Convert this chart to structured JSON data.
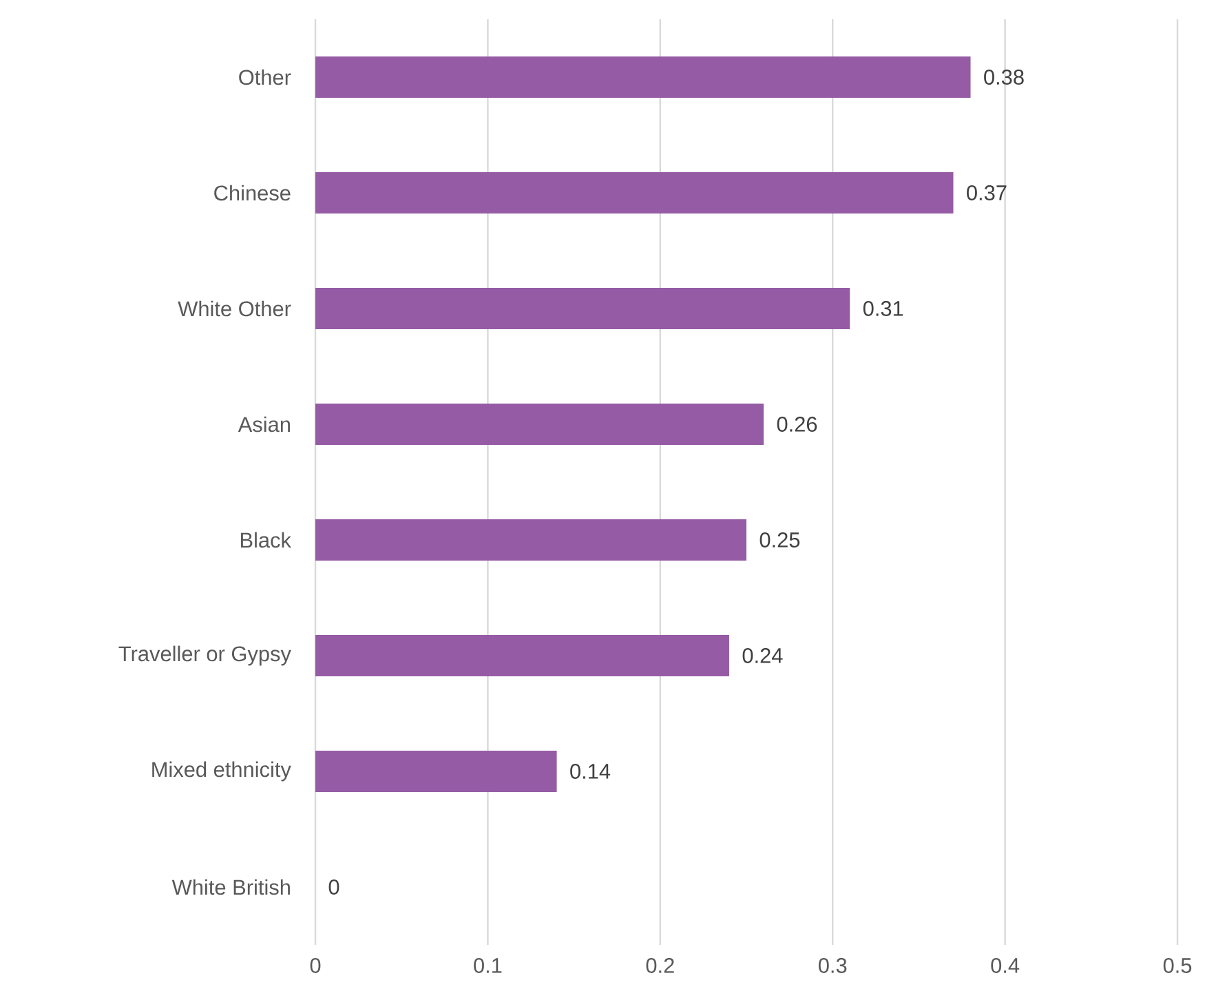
{
  "chart_data": {
    "type": "bar",
    "orientation": "horizontal",
    "categories": [
      "Other",
      "Chinese",
      "White Other",
      "Asian",
      "Black",
      "Traveller or Gypsy",
      "Mixed ethnicity",
      "White British"
    ],
    "values": [
      0.38,
      0.37,
      0.31,
      0.26,
      0.25,
      0.24,
      0.14,
      0
    ],
    "color": "#955ba5",
    "xlim": [
      0,
      0.5
    ],
    "xticks": [
      0,
      0.1,
      0.2,
      0.3,
      0.4,
      0.5
    ],
    "grid": "x",
    "data_labels": true
  }
}
